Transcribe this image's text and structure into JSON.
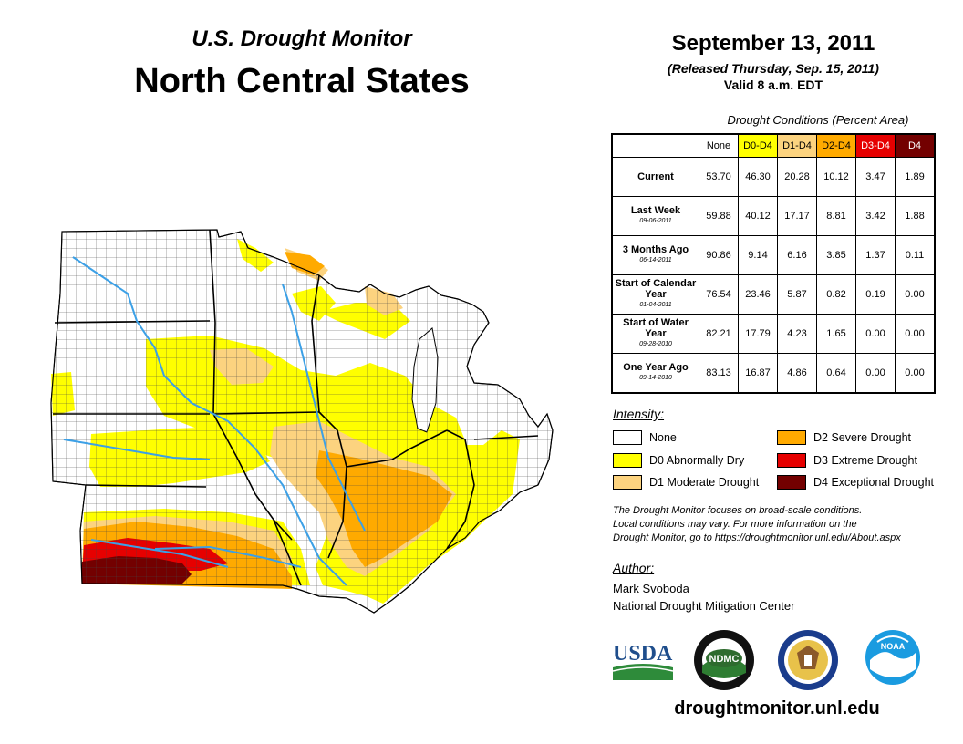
{
  "header": {
    "subtitle": "U.S. Drought Monitor",
    "title": "North Central States",
    "date": "September 13, 2011",
    "released": "(Released Thursday, Sep. 15, 2011)",
    "valid": "Valid 8 a.m. EDT"
  },
  "conditions": {
    "caption": "Drought Conditions (Percent Area)",
    "columns": [
      {
        "label": "None",
        "color": "#ffffff"
      },
      {
        "label": "D0-D4",
        "color": "#ffff00"
      },
      {
        "label": "D1-D4",
        "color": "#fcd37f"
      },
      {
        "label": "D2-D4",
        "color": "#ffaa00"
      },
      {
        "label": "D3-D4",
        "color": "#e60000"
      },
      {
        "label": "D4",
        "color": "#730000"
      }
    ],
    "rows": [
      {
        "label": "Current",
        "date": "",
        "values": [
          "53.70",
          "46.30",
          "20.28",
          "10.12",
          "3.47",
          "1.89"
        ]
      },
      {
        "label": "Last Week",
        "date": "09-06-2011",
        "values": [
          "59.88",
          "40.12",
          "17.17",
          "8.81",
          "3.42",
          "1.88"
        ]
      },
      {
        "label": "3 Months Ago",
        "date": "06-14-2011",
        "values": [
          "90.86",
          "9.14",
          "6.16",
          "3.85",
          "1.37",
          "0.11"
        ]
      },
      {
        "label": "Start of Calendar Year",
        "date": "01-04-2011",
        "values": [
          "76.54",
          "23.46",
          "5.87",
          "0.82",
          "0.19",
          "0.00"
        ]
      },
      {
        "label": "Start of Water Year",
        "date": "09-28-2010",
        "values": [
          "82.21",
          "17.79",
          "4.23",
          "1.65",
          "0.00",
          "0.00"
        ]
      },
      {
        "label": "One Year Ago",
        "date": "09-14-2010",
        "values": [
          "83.13",
          "16.87",
          "4.86",
          "0.64",
          "0.00",
          "0.00"
        ]
      }
    ]
  },
  "legend": {
    "heading": "Intensity:",
    "items": [
      {
        "label": "None",
        "color": "#ffffff"
      },
      {
        "label": "D0 Abnormally Dry",
        "color": "#ffff00"
      },
      {
        "label": "D1 Moderate Drought",
        "color": "#fcd37f"
      },
      {
        "label": "D2 Severe Drought",
        "color": "#ffaa00"
      },
      {
        "label": "D3 Extreme Drought",
        "color": "#e60000"
      },
      {
        "label": "D4 Exceptional Drought",
        "color": "#730000"
      }
    ]
  },
  "note": {
    "line1": "The Drought Monitor focuses on broad-scale conditions.",
    "line2": "Local conditions may vary. For more information on the",
    "line3": "Drought Monitor, go to https://droughtmonitor.unl.edu/About.aspx"
  },
  "author": {
    "heading": "Author:",
    "name": "Mark Svoboda",
    "org": "National Drought Mitigation Center"
  },
  "logos": {
    "usda": "USDA",
    "ndmc": "NDMC",
    "noaa": "NOAA"
  },
  "url": "droughtmonitor.unl.edu"
}
